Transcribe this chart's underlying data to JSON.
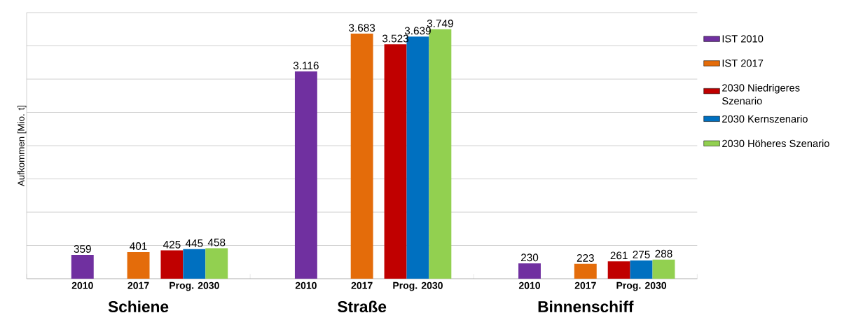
{
  "chart_data": {
    "type": "bar",
    "ylabel": "Aufkommen [Mio. t]",
    "categories": [
      "2010",
      "2017",
      "Prog. 2030",
      "2010",
      "2017",
      "Prog. 2030",
      "2010",
      "2017",
      "Prog. 2030"
    ],
    "series": [
      {
        "name": "IST 2010",
        "color": "#7030a0",
        "values": [
          359,
          null,
          null,
          3116,
          null,
          null,
          230,
          null,
          null
        ],
        "value_labels": [
          "359",
          null,
          null,
          "3.116",
          null,
          null,
          "230",
          null,
          null
        ]
      },
      {
        "name": "IST 2017",
        "color": "#e46c0a",
        "values": [
          null,
          401,
          null,
          null,
          3683,
          null,
          null,
          223,
          null
        ],
        "value_labels": [
          null,
          "401",
          null,
          null,
          "3.683",
          null,
          null,
          "223",
          null
        ]
      },
      {
        "name": "2030 Niedrigeres Szenario",
        "color": "#c00000",
        "values": [
          null,
          null,
          425,
          null,
          null,
          3523,
          null,
          null,
          261
        ],
        "value_labels": [
          null,
          null,
          "425",
          null,
          null,
          "3.523",
          null,
          null,
          "261"
        ]
      },
      {
        "name": "2030 Kernszenario",
        "color": "#0070c0",
        "values": [
          null,
          null,
          445,
          null,
          null,
          3639,
          null,
          null,
          275
        ],
        "value_labels": [
          null,
          null,
          "445",
          null,
          null,
          "3.639",
          null,
          null,
          "275"
        ]
      },
      {
        "name": "2030 Höheres Szenario",
        "color": "#92d050",
        "values": [
          null,
          null,
          458,
          null,
          null,
          3749,
          null,
          null,
          288
        ],
        "value_labels": [
          null,
          null,
          "458",
          null,
          null,
          "3.749",
          null,
          null,
          "288"
        ]
      }
    ],
    "annotations": [
      "Schiene",
      "Straße",
      "Binnenschiff"
    ],
    "ylim": [
      0,
      4000
    ],
    "yticks": [
      {
        "value": 0,
        "label": null
      },
      {
        "value": 500,
        "label": null
      },
      {
        "value": 1000,
        "label": null
      },
      {
        "value": 1500,
        "label": null
      },
      {
        "value": 2000,
        "label": null
      },
      {
        "value": 2500,
        "label": null
      },
      {
        "value": 3000,
        "label": null
      },
      {
        "value": 3500,
        "label": null
      },
      {
        "value": 4000,
        "label": null
      }
    ],
    "grid": "y",
    "legend": "right",
    "tick_labels": "x"
  }
}
